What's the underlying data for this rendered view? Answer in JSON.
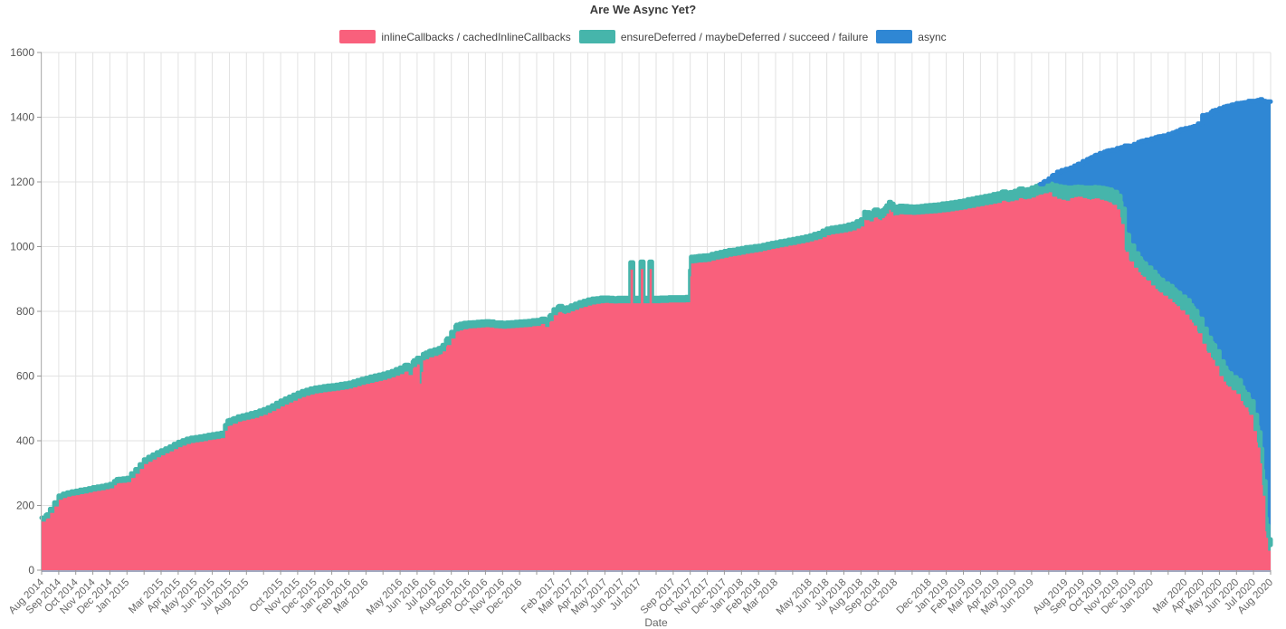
{
  "title": "Are We Async Yet?",
  "chart_data": {
    "type": "area",
    "stacked": true,
    "title": "Are We Async Yet?",
    "xlabel": "Date",
    "ylabel": "",
    "ylim": [
      0,
      1600
    ],
    "y_ticks": [
      0,
      200,
      400,
      600,
      800,
      1000,
      1200,
      1400,
      1600
    ],
    "grid": true,
    "legend_position": "top",
    "series": [
      {
        "name": "inlineCallbacks / cachedInlineCallbacks",
        "color": "#f9607c"
      },
      {
        "name": "ensureDeferred / maybeDeferred / succeed / failure",
        "color": "#46b5ab"
      },
      {
        "name": "async",
        "color": "#2f87d4"
      }
    ],
    "x_tick_months": [
      "Aug 2014",
      "Sep 2014",
      "Oct 2014",
      "Nov 2014",
      "Dec 2014",
      "Jan 2015",
      "",
      "Mar 2015",
      "Apr 2015",
      "May 2015",
      "Jun 2015",
      "Jul 2015",
      "Aug 2015",
      "",
      "Oct 2015",
      "Nov 2015",
      "Dec 2015",
      "Jan 2016",
      "Feb 2016",
      "Mar 2016",
      "",
      "May 2016",
      "Jun 2016",
      "Jul 2016",
      "Aug 2016",
      "Sep 2016",
      "Oct 2016",
      "Nov 2016",
      "Dec 2016",
      "",
      "Feb 2017",
      "Mar 2017",
      "Apr 2017",
      "May 2017",
      "Jun 2017",
      "Jul 2017",
      "",
      "Sep 2017",
      "Oct 2017",
      "Nov 2017",
      "Dec 2017",
      "Jan 2018",
      "Feb 2018",
      "Mar 2018",
      "",
      "May 2018",
      "Jun 2018",
      "Jul 2018",
      "Aug 2018",
      "Sep 2018",
      "Oct 2018",
      "",
      "Dec 2018",
      "Jan 2019",
      "Feb 2019",
      "Mar 2019",
      "Apr 2019",
      "May 2019",
      "Jun 2019",
      "",
      "Aug 2019",
      "Sep 2019",
      "Oct 2019",
      "Nov 2019",
      "Dec 2019",
      "Jan 2020",
      "",
      "Mar 2020",
      "Apr 2020",
      "May 2020",
      "Jun 2020",
      "Jul 2020",
      "Aug 2020"
    ],
    "point_format": [
      "months_since_aug_2014",
      "inlineCallbacks",
      "ensureDeferred",
      "async"
    ],
    "points": [
      [
        0,
        150,
        12,
        0
      ],
      [
        0.3,
        160,
        12,
        0
      ],
      [
        1,
        218,
        12,
        0
      ],
      [
        1.5,
        227,
        13,
        0
      ],
      [
        2,
        232,
        13,
        0
      ],
      [
        2.5,
        237,
        13,
        0
      ],
      [
        3,
        243,
        13,
        0
      ],
      [
        3.5,
        247,
        13,
        0
      ],
      [
        4,
        253,
        13,
        0
      ],
      [
        4.4,
        268,
        13,
        0
      ],
      [
        5,
        272,
        13,
        0
      ],
      [
        5.5,
        298,
        14,
        0
      ],
      [
        6,
        328,
        14,
        0
      ],
      [
        6.5,
        342,
        15,
        0
      ],
      [
        7,
        355,
        15,
        0
      ],
      [
        7.5,
        367,
        15,
        0
      ],
      [
        8,
        380,
        16,
        0
      ],
      [
        8.5,
        390,
        16,
        0
      ],
      [
        9,
        395,
        16,
        0
      ],
      [
        9.5,
        399,
        16,
        0
      ],
      [
        10,
        404,
        16,
        0
      ],
      [
        10.5,
        408,
        16,
        0
      ],
      [
        10.9,
        445,
        17,
        0
      ],
      [
        11.2,
        452,
        16,
        0
      ],
      [
        11.5,
        459,
        16,
        0
      ],
      [
        12,
        465,
        16,
        0
      ],
      [
        12.5,
        471,
        17,
        0
      ],
      [
        13,
        480,
        17,
        0
      ],
      [
        13.5,
        492,
        17,
        0
      ],
      [
        14,
        506,
        18,
        0
      ],
      [
        14.5,
        518,
        18,
        0
      ],
      [
        15,
        530,
        18,
        0
      ],
      [
        15.5,
        539,
        18,
        0
      ],
      [
        16,
        546,
        18,
        0
      ],
      [
        16.5,
        550,
        18,
        0
      ],
      [
        17,
        553,
        18,
        0
      ],
      [
        17.5,
        557,
        18,
        0
      ],
      [
        18,
        561,
        18,
        0
      ],
      [
        18.5,
        569,
        18,
        0
      ],
      [
        19,
        576,
        18,
        0
      ],
      [
        19.5,
        582,
        19,
        0
      ],
      [
        20,
        588,
        19,
        0
      ],
      [
        20.5,
        596,
        19,
        0
      ],
      [
        21,
        606,
        20,
        0
      ],
      [
        21.3,
        614,
        20,
        0
      ],
      [
        21.5,
        603,
        19,
        0
      ],
      [
        21.8,
        628,
        20,
        0
      ],
      [
        22,
        636,
        20,
        0
      ],
      [
        22.15,
        577,
        16,
        0
      ],
      [
        22.35,
        648,
        20,
        0
      ],
      [
        22.7,
        657,
        20,
        0
      ],
      [
        23,
        662,
        20,
        0
      ],
      [
        23.4,
        668,
        20,
        0
      ],
      [
        23.7,
        692,
        20,
        0
      ],
      [
        24,
        716,
        20,
        0
      ],
      [
        24.3,
        738,
        20,
        0
      ],
      [
        24.7,
        744,
        19,
        0
      ],
      [
        25,
        747,
        18,
        0
      ],
      [
        25.5,
        749,
        18,
        0
      ],
      [
        26,
        751,
        18,
        0
      ],
      [
        26.5,
        748,
        17,
        0
      ],
      [
        27,
        746,
        18,
        0
      ],
      [
        27.5,
        748,
        18,
        0
      ],
      [
        28,
        750,
        18,
        0
      ],
      [
        28.5,
        752,
        18,
        0
      ],
      [
        29,
        755,
        18,
        0
      ],
      [
        29.3,
        761,
        16,
        0
      ],
      [
        29.5,
        752,
        17,
        0
      ],
      [
        29.8,
        770,
        18,
        0
      ],
      [
        30,
        788,
        18,
        0
      ],
      [
        30.3,
        798,
        18,
        0
      ],
      [
        30.6,
        792,
        17,
        0
      ],
      [
        31,
        800,
        18,
        0
      ],
      [
        31.5,
        810,
        18,
        0
      ],
      [
        32,
        818,
        18,
        0
      ],
      [
        32.5,
        823,
        17,
        0
      ],
      [
        33,
        826,
        16,
        0
      ],
      [
        33.5,
        824,
        16,
        0
      ],
      [
        34,
        825,
        16,
        0
      ],
      [
        34.35,
        825,
        16,
        0
      ],
      [
        34.5,
        929,
        22,
        0
      ],
      [
        34.65,
        825,
        16,
        0
      ],
      [
        35,
        825,
        16,
        0
      ],
      [
        35.1,
        931,
        22,
        0
      ],
      [
        35.25,
        825,
        16,
        0
      ],
      [
        35.5,
        825,
        16,
        0
      ],
      [
        35.62,
        931,
        22,
        0
      ],
      [
        35.75,
        825,
        16,
        0
      ],
      [
        36,
        825,
        16,
        0
      ],
      [
        36.5,
        826,
        16,
        0
      ],
      [
        37,
        827,
        16,
        0
      ],
      [
        37.5,
        827,
        16,
        0
      ],
      [
        37.9,
        828,
        16,
        0
      ],
      [
        38.05,
        948,
        20,
        0
      ],
      [
        38.4,
        950,
        20,
        0
      ],
      [
        39,
        953,
        20,
        0
      ],
      [
        39.5,
        960,
        20,
        0
      ],
      [
        40,
        966,
        20,
        0
      ],
      [
        40.5,
        971,
        19,
        0
      ],
      [
        41,
        975,
        20,
        0
      ],
      [
        41.5,
        980,
        19,
        0
      ],
      [
        42,
        984,
        18,
        0
      ],
      [
        42.5,
        990,
        18,
        0
      ],
      [
        43,
        995,
        18,
        0
      ],
      [
        43.5,
        1000,
        18,
        0
      ],
      [
        44,
        1005,
        18,
        0
      ],
      [
        44.5,
        1010,
        18,
        0
      ],
      [
        45,
        1016,
        18,
        0
      ],
      [
        45.5,
        1023,
        19,
        0
      ],
      [
        46,
        1035,
        20,
        0
      ],
      [
        46.5,
        1040,
        20,
        0
      ],
      [
        47,
        1044,
        20,
        0
      ],
      [
        47.5,
        1050,
        21,
        0
      ],
      [
        48,
        1062,
        22,
        0
      ],
      [
        48.2,
        1083,
        24,
        0
      ],
      [
        48.5,
        1078,
        23,
        0
      ],
      [
        48.8,
        1090,
        24,
        0
      ],
      [
        49.1,
        1082,
        23,
        0
      ],
      [
        49.4,
        1094,
        25,
        0
      ],
      [
        49.65,
        1114,
        24,
        0
      ],
      [
        49.9,
        1096,
        26,
        0
      ],
      [
        50.3,
        1100,
        26,
        0
      ],
      [
        51,
        1098,
        25,
        0
      ],
      [
        51.5,
        1100,
        25,
        0
      ],
      [
        52,
        1102,
        26,
        0
      ],
      [
        52.5,
        1104,
        26,
        0
      ],
      [
        53,
        1107,
        27,
        0
      ],
      [
        53.5,
        1111,
        27,
        0
      ],
      [
        54,
        1115,
        27,
        0
      ],
      [
        54.5,
        1120,
        28,
        0
      ],
      [
        55,
        1125,
        28,
        0
      ],
      [
        55.5,
        1130,
        28,
        0
      ],
      [
        56,
        1135,
        29,
        0
      ],
      [
        56.3,
        1142,
        28,
        0
      ],
      [
        56.6,
        1138,
        28,
        0
      ],
      [
        57,
        1143,
        29,
        0
      ],
      [
        57.3,
        1150,
        29,
        0
      ],
      [
        57.6,
        1146,
        29,
        0
      ],
      [
        58,
        1152,
        30,
        0
      ],
      [
        58.4,
        1160,
        30,
        0
      ],
      [
        58.7,
        1164,
        28,
        8
      ],
      [
        59,
        1168,
        26,
        16
      ],
      [
        59.2,
        1155,
        34,
        30
      ],
      [
        59.5,
        1148,
        38,
        45
      ],
      [
        60,
        1142,
        40,
        58
      ],
      [
        60.3,
        1150,
        32,
        62
      ],
      [
        60.7,
        1155,
        30,
        70
      ],
      [
        61,
        1150,
        32,
        82
      ],
      [
        61.4,
        1145,
        36,
        92
      ],
      [
        61.7,
        1150,
        34,
        98
      ],
      [
        62,
        1145,
        36,
        108
      ],
      [
        62.4,
        1140,
        38,
        118
      ],
      [
        62.7,
        1132,
        40,
        127
      ],
      [
        63,
        1115,
        42,
        147
      ],
      [
        63.2,
        1090,
        46,
        170
      ],
      [
        63.45,
        990,
        52,
        270
      ],
      [
        63.7,
        958,
        50,
        302
      ],
      [
        64,
        935,
        44,
        338
      ],
      [
        64.4,
        912,
        42,
        372
      ],
      [
        64.7,
        898,
        40,
        392
      ],
      [
        65,
        880,
        42,
        412
      ],
      [
        65.4,
        862,
        40,
        438
      ],
      [
        65.7,
        850,
        38,
        455
      ],
      [
        66,
        838,
        40,
        470
      ],
      [
        66.4,
        822,
        40,
        492
      ],
      [
        66.7,
        805,
        42,
        515
      ],
      [
        67,
        790,
        44,
        532
      ],
      [
        67.4,
        765,
        45,
        560
      ],
      [
        67.7,
        738,
        45,
        592
      ],
      [
        68,
        700,
        46,
        660
      ],
      [
        68.3,
        672,
        46,
        690
      ],
      [
        68.6,
        650,
        45,
        725
      ],
      [
        69,
        600,
        45,
        782
      ],
      [
        69.4,
        572,
        42,
        820
      ],
      [
        69.7,
        558,
        40,
        840
      ],
      [
        70,
        545,
        42,
        856
      ],
      [
        70.4,
        510,
        42,
        893
      ],
      [
        70.7,
        490,
        40,
        920
      ],
      [
        71,
        430,
        50,
        970
      ],
      [
        71.2,
        395,
        48,
        1009
      ],
      [
        71.4,
        330,
        45,
        1080
      ],
      [
        71.55,
        230,
        45,
        1175
      ],
      [
        71.7,
        120,
        40,
        1288
      ],
      [
        71.85,
        60,
        35,
        1353
      ],
      [
        72,
        40,
        38,
        1370
      ]
    ]
  }
}
